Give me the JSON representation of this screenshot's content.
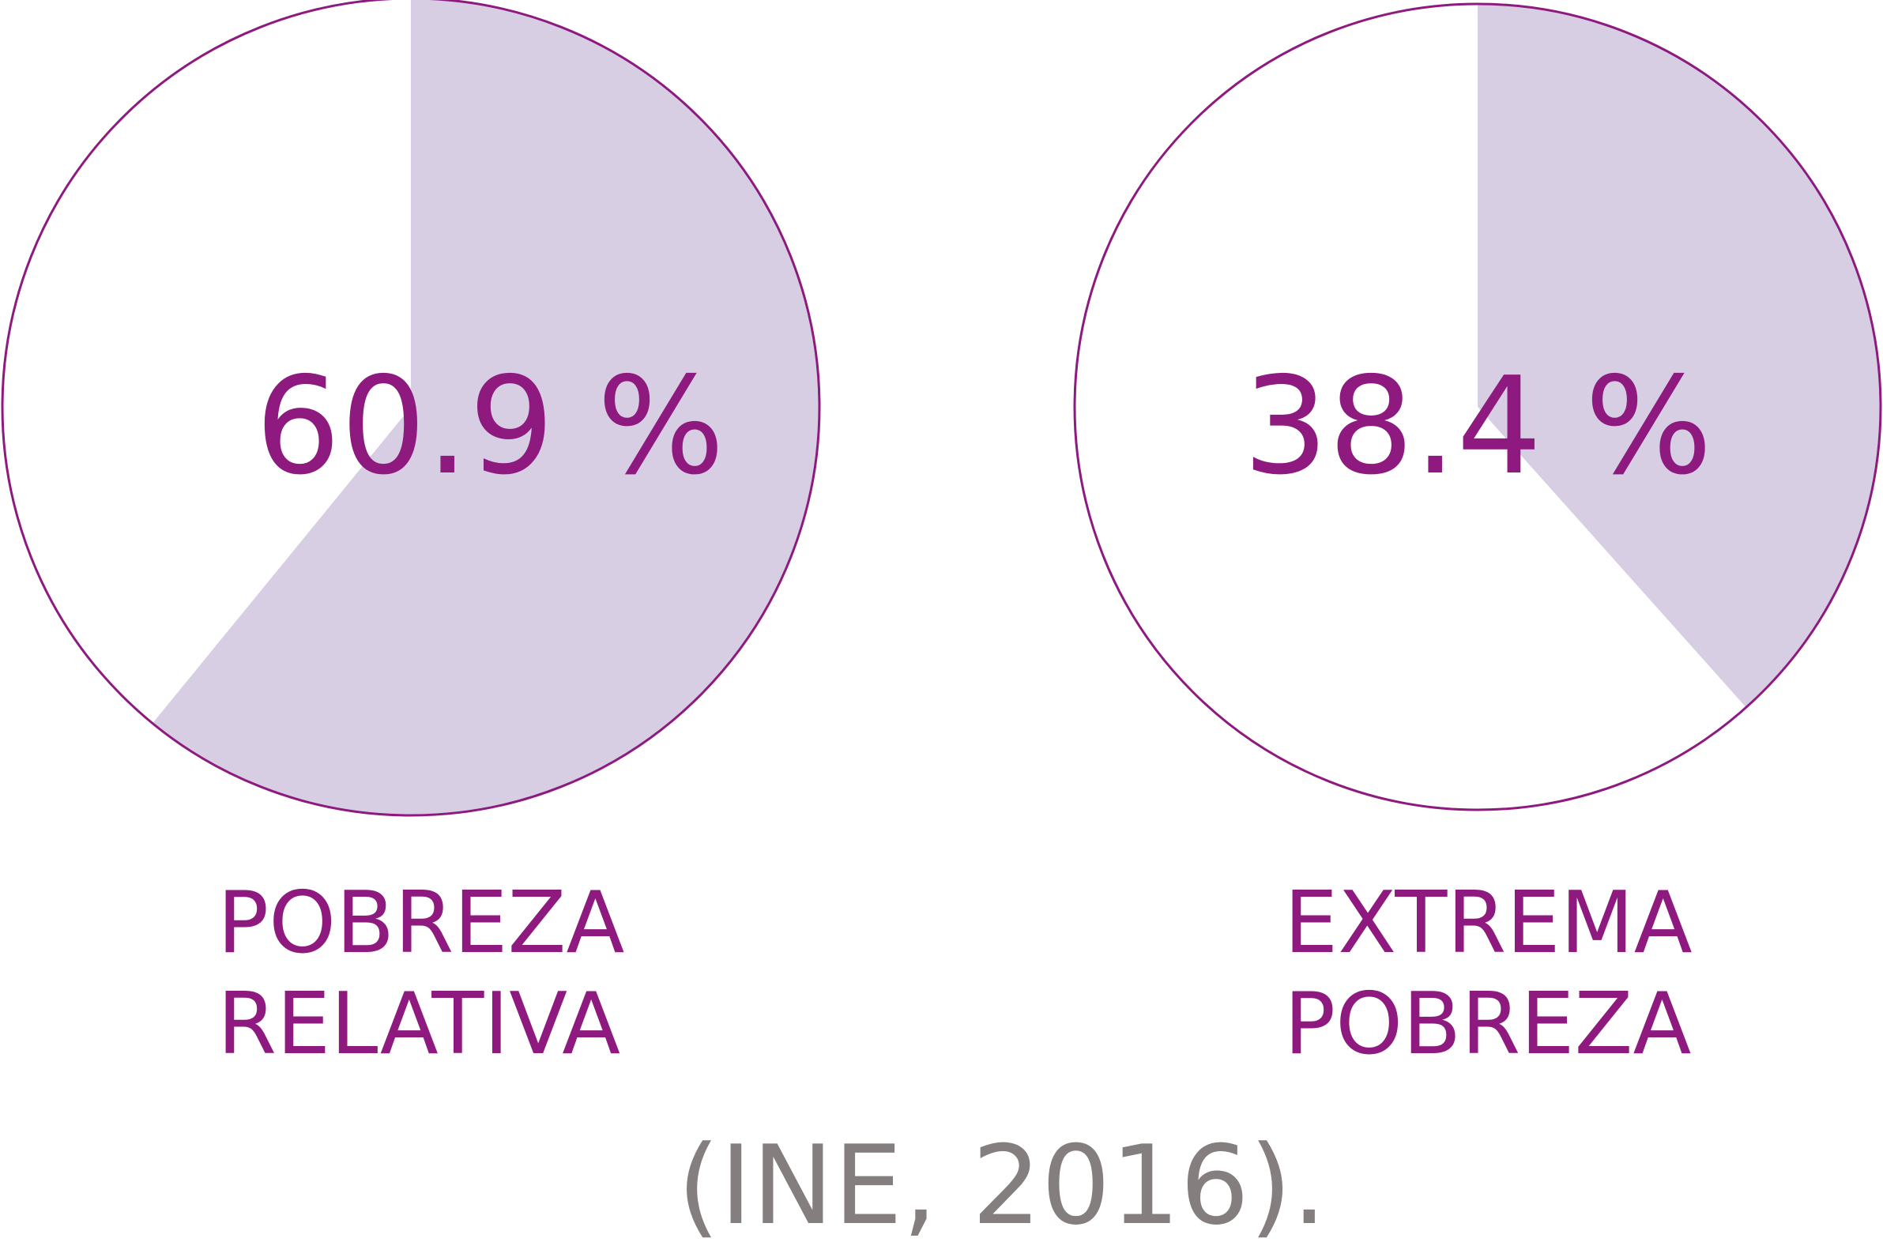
{
  "colors": {
    "fill": "#d8cee4",
    "outline": "#8e1a80",
    "text": "#8e1a80",
    "source_text": "#857e7e"
  },
  "chart_data": [
    {
      "type": "pie",
      "value": 60.9,
      "value_label": "60.9 %",
      "caption": [
        "POBREZA",
        "RELATIVA"
      ]
    },
    {
      "type": "pie",
      "value": 38.4,
      "value_label": "38.4 %",
      "caption": [
        "EXTREMA",
        "POBREZA"
      ]
    }
  ],
  "source": "(INE, 2016)."
}
